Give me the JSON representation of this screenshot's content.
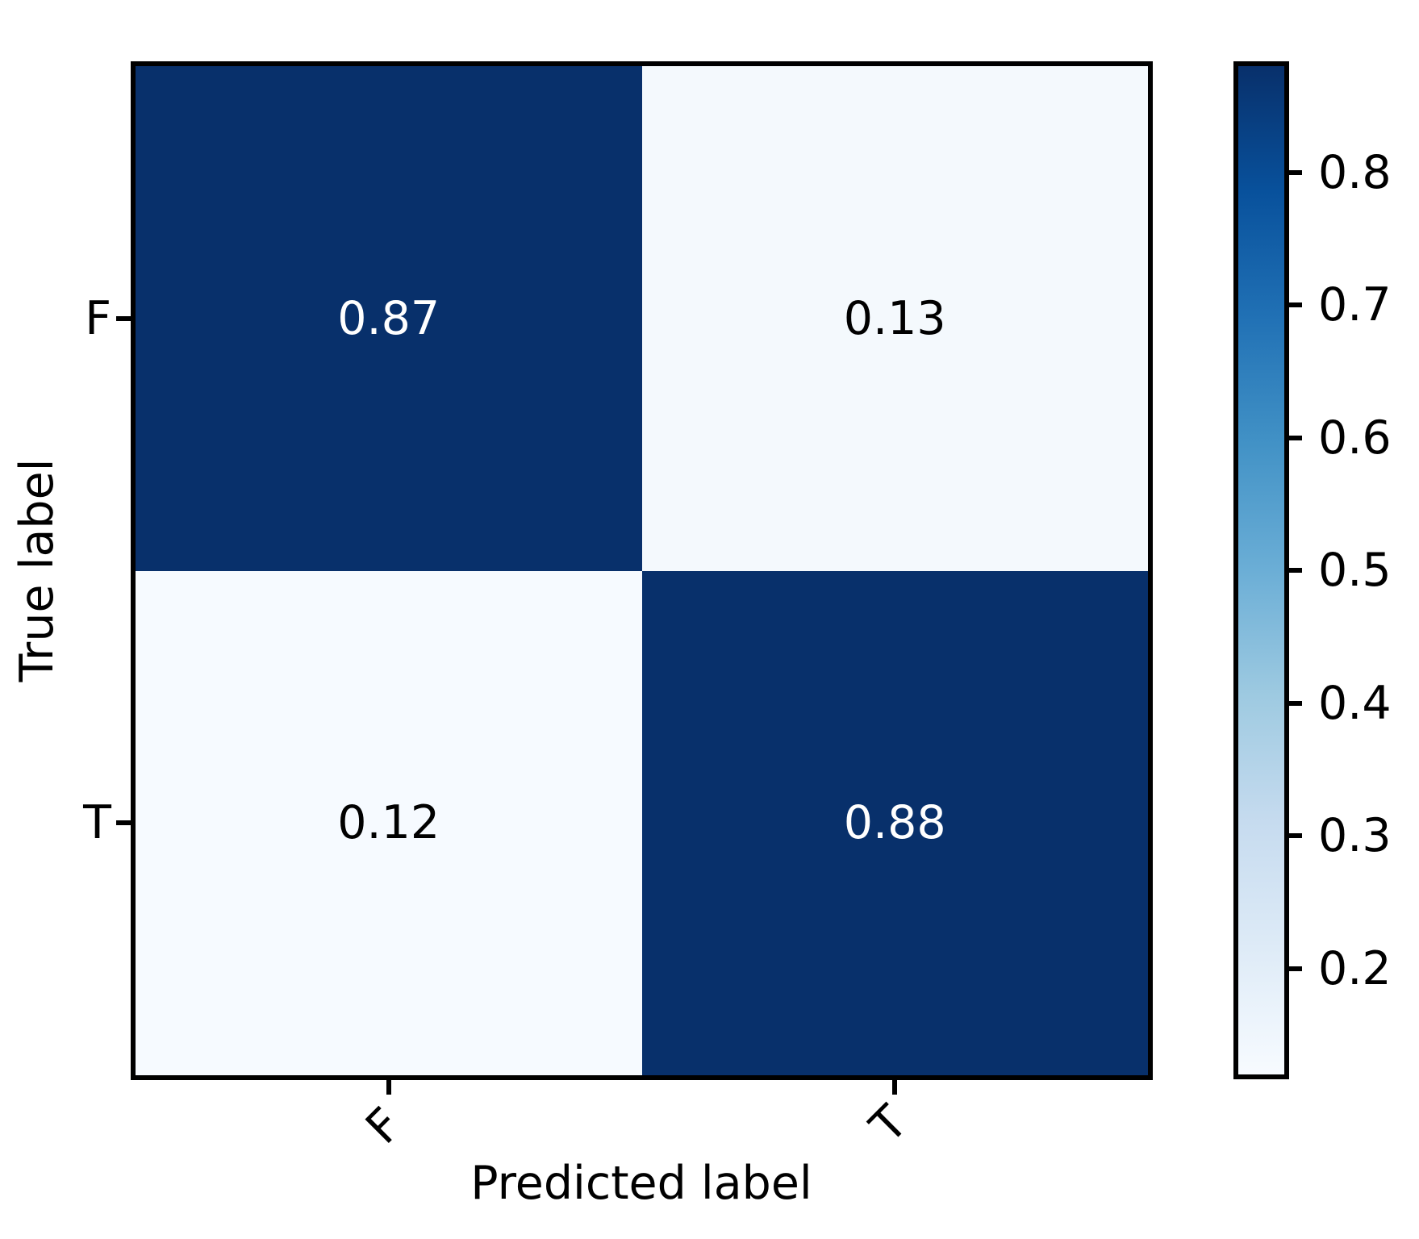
{
  "chart_data": {
    "type": "heatmap",
    "title": "",
    "xlabel": "Predicted label",
    "ylabel": "True label",
    "x_categories": [
      "F",
      "T"
    ],
    "y_categories": [
      "F",
      "T"
    ],
    "matrix": [
      [
        0.87,
        0.13
      ],
      [
        0.12,
        0.88
      ]
    ],
    "cells": [
      {
        "row": "F",
        "col": "F",
        "label": "0.87",
        "bg": "#08306b",
        "fg": "#ffffff"
      },
      {
        "row": "F",
        "col": "T",
        "label": "0.13",
        "bg": "#f4f9fd",
        "fg": "#000000"
      },
      {
        "row": "T",
        "col": "F",
        "label": "0.12",
        "bg": "#f6faff",
        "fg": "#000000"
      },
      {
        "row": "T",
        "col": "T",
        "label": "0.88",
        "bg": "#08306b",
        "fg": "#ffffff"
      }
    ],
    "colorbar": {
      "tick_labels": [
        "0.8",
        "0.7",
        "0.6",
        "0.5",
        "0.4",
        "0.3",
        "0.2"
      ],
      "vmin": 0.12,
      "vmax": 0.88,
      "colormap": "Blues",
      "gradient_stops": [
        "#f7fbff",
        "#deebf7",
        "#c6dbef",
        "#9ecae1",
        "#6baed6",
        "#4292c6",
        "#2171b5",
        "#08519c",
        "#08306b"
      ]
    },
    "axis_color": "#000000",
    "background": "#ffffff",
    "grid": false,
    "legend_position": "none"
  }
}
